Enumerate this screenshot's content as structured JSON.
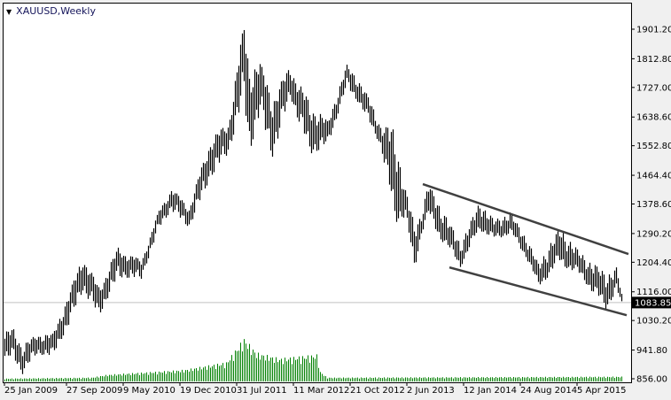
{
  "window": {
    "title": "XAUUSD,Weekly",
    "collapse_icon": "triangle-down-icon"
  },
  "colors": {
    "price_bars": "#000000",
    "volume_bars": "#008000",
    "channel_lines": "#404040",
    "current_price_line": "#c0c0c0",
    "current_price_label_bg": "#000000",
    "background": "#ffffff"
  },
  "chart_data": {
    "type": "bar",
    "subtype": "ohlc-weekly",
    "symbol": "XAUUSD",
    "timeframe": "Weekly",
    "ylim": [
      856.0,
      1930.0
    ],
    "y_ticks": [
      "1901.20",
      "1812.80",
      "1727.00",
      "1638.60",
      "1552.80",
      "1464.40",
      "1378.60",
      "1290.20",
      "1204.40",
      "1116.00",
      "1030.20",
      "941.80",
      "856.00"
    ],
    "x_ticks": [
      {
        "label": "25 Jan 2009",
        "date": "2009-01-25"
      },
      {
        "label": "27 Sep 2009",
        "date": "2009-09-27"
      },
      {
        "label": "9 May 2010",
        "date": "2010-05-09"
      },
      {
        "label": "19 Dec 2010",
        "date": "2010-12-19"
      },
      {
        "label": "31 Jul 2011",
        "date": "2011-07-31"
      },
      {
        "label": "11 Mar 2012",
        "date": "2012-03-11"
      },
      {
        "label": "21 Oct 2012",
        "date": "2012-10-21"
      },
      {
        "label": "2 Jun 2013",
        "date": "2013-06-02"
      },
      {
        "label": "12 Jan 2014",
        "date": "2014-01-12"
      },
      {
        "label": "24 Aug 2014",
        "date": "2014-08-24"
      },
      {
        "label": "5 Apr 2015",
        "date": "2015-04-05"
      }
    ],
    "current_price": "1083.85",
    "price_path": [
      {
        "date": "2009-01-25",
        "high": 996,
        "low": 904
      },
      {
        "date": "2009-03-01",
        "high": 1004,
        "low": 920
      },
      {
        "date": "2009-04-05",
        "high": 955,
        "low": 870
      },
      {
        "date": "2009-06-01",
        "high": 990,
        "low": 930
      },
      {
        "date": "2009-08-02",
        "high": 991,
        "low": 922
      },
      {
        "date": "2009-10-11",
        "high": 1123,
        "low": 1028
      },
      {
        "date": "2009-11-29",
        "high": 1226,
        "low": 1120
      },
      {
        "date": "2010-01-31",
        "high": 1130,
        "low": 1044
      },
      {
        "date": "2010-04-18",
        "high": 1248,
        "low": 1160
      },
      {
        "date": "2010-07-18",
        "high": 1210,
        "low": 1155
      },
      {
        "date": "2010-09-26",
        "high": 1361,
        "low": 1308
      },
      {
        "date": "2010-11-14",
        "high": 1427,
        "low": 1360
      },
      {
        "date": "2011-01-23",
        "high": 1370,
        "low": 1308
      },
      {
        "date": "2011-04-17",
        "high": 1573,
        "low": 1459
      },
      {
        "date": "2011-06-26",
        "high": 1620,
        "low": 1530
      },
      {
        "date": "2011-08-28",
        "high": 1922,
        "low": 1697
      },
      {
        "date": "2011-09-18",
        "high": 1800,
        "low": 1533
      },
      {
        "date": "2011-10-30",
        "high": 1803,
        "low": 1650
      },
      {
        "date": "2011-12-18",
        "high": 1700,
        "low": 1520
      },
      {
        "date": "2012-02-26",
        "high": 1790,
        "low": 1700
      },
      {
        "date": "2012-05-13",
        "high": 1680,
        "low": 1528
      },
      {
        "date": "2012-07-22",
        "high": 1626,
        "low": 1552
      },
      {
        "date": "2012-10-07",
        "high": 1795,
        "low": 1730
      },
      {
        "date": "2012-11-18",
        "high": 1756,
        "low": 1684
      },
      {
        "date": "2012-12-30",
        "high": 1700,
        "low": 1626
      },
      {
        "date": "2013-02-17",
        "high": 1613,
        "low": 1552
      },
      {
        "date": "2013-04-14",
        "high": 1600,
        "low": 1322
      },
      {
        "date": "2013-05-26",
        "high": 1420,
        "low": 1340
      },
      {
        "date": "2013-06-30",
        "high": 1320,
        "low": 1176
      },
      {
        "date": "2013-07-28",
        "high": 1350,
        "low": 1290
      },
      {
        "date": "2013-08-25",
        "high": 1438,
        "low": 1340
      },
      {
        "date": "2013-10-06",
        "high": 1380,
        "low": 1280
      },
      {
        "date": "2013-12-29",
        "high": 1260,
        "low": 1189
      },
      {
        "date": "2014-03-16",
        "high": 1385,
        "low": 1300
      },
      {
        "date": "2014-05-11",
        "high": 1330,
        "low": 1270
      },
      {
        "date": "2014-07-13",
        "high": 1353,
        "low": 1290
      },
      {
        "date": "2014-09-14",
        "high": 1280,
        "low": 1220
      },
      {
        "date": "2014-11-02",
        "high": 1200,
        "low": 1128
      },
      {
        "date": "2015-01-25",
        "high": 1306,
        "low": 1200
      },
      {
        "date": "2015-04-19",
        "high": 1230,
        "low": 1160
      },
      {
        "date": "2015-07-26",
        "high": 1170,
        "low": 1062
      },
      {
        "date": "2015-09-06",
        "high": 1189,
        "low": 1120
      },
      {
        "date": "2015-09-27",
        "high": 1110,
        "low": 1075
      }
    ],
    "volume_path": [
      {
        "date": "2009-01-25",
        "value": 3
      },
      {
        "date": "2010-01-03",
        "value": 4
      },
      {
        "date": "2010-03-07",
        "value": 7
      },
      {
        "date": "2011-01-02",
        "value": 12
      },
      {
        "date": "2011-06-19",
        "value": 20
      },
      {
        "date": "2011-08-28",
        "value": 45
      },
      {
        "date": "2011-10-16",
        "value": 30
      },
      {
        "date": "2012-01-15",
        "value": 24
      },
      {
        "date": "2012-06-10",
        "value": 28
      },
      {
        "date": "2012-06-24",
        "value": 10
      },
      {
        "date": "2012-07-22",
        "value": 4
      },
      {
        "date": "2015-09-27",
        "value": 5
      }
    ],
    "channel": {
      "upper": [
        {
          "date": "2013-08-04",
          "price": 1438
        },
        {
          "date": "2015-10-25",
          "price": 1229
        }
      ],
      "lower": [
        {
          "date": "2013-11-17",
          "price": 1189
        },
        {
          "date": "2015-10-18",
          "price": 1046
        }
      ]
    }
  }
}
